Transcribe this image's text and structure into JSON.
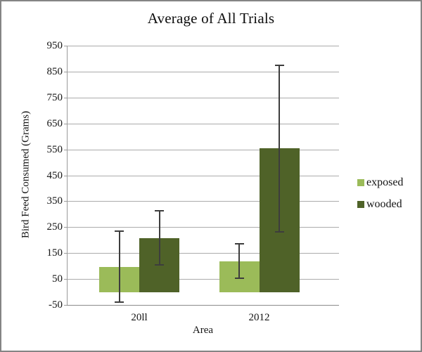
{
  "window": {
    "background": "#ffffff",
    "border_color": "#848484"
  },
  "chart_data": {
    "type": "bar",
    "title": "Average of All Trials",
    "xlabel": "Area",
    "ylabel": "Bird Feed Consumed (Grams)",
    "categories": [
      "20ll",
      "2012"
    ],
    "series": [
      {
        "name": "exposed",
        "color": "#9BBB59",
        "values": [
          97,
          118
        ],
        "error_high": [
          235,
          185
        ],
        "error_low": [
          -40,
          53
        ]
      },
      {
        "name": "wooded",
        "color": "#4F6228",
        "values": [
          208,
          553
        ],
        "error_high": [
          314,
          875
        ],
        "error_low": [
          105,
          232
        ]
      }
    ],
    "ylim": [
      -50,
      950
    ],
    "yticks": [
      950,
      850,
      750,
      650,
      550,
      450,
      350,
      250,
      150,
      50,
      -50
    ],
    "grid": true,
    "legend_position": "right",
    "error_bar_color": "#3d3d3d",
    "gridline_color": "#ababab"
  }
}
